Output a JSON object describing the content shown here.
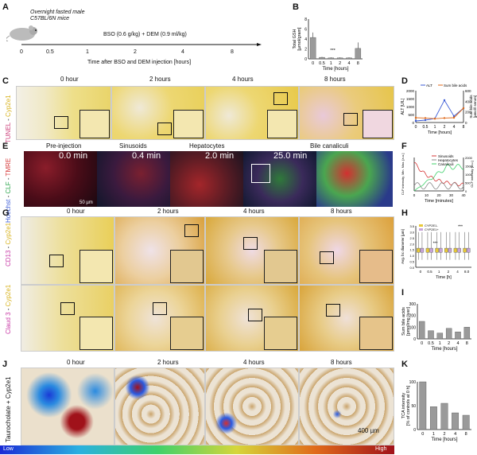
{
  "panels": {
    "A": {
      "letter": "A",
      "mouse_text_1": "Overnight fasted male",
      "mouse_text_2": "C57BL/6N mice",
      "treatment": "BSO (0.6 g/kg) + DEM (0.9 ml/kg)",
      "ticks": [
        "0",
        "0.5",
        "1",
        "2",
        "4",
        "8"
      ],
      "axis_label": "Time after BSO and DEM injection [hours]"
    },
    "B": {
      "letter": "B"
    },
    "C": {
      "letter": "C",
      "times": [
        "0 hour",
        "2 hours",
        "4 hours",
        "8 hours"
      ],
      "side_label_a": "TUNEL",
      "side_label_sep": " - ",
      "side_label_b": "Cyp2e1"
    },
    "D": {
      "letter": "D"
    },
    "E": {
      "letter": "E",
      "times": [
        "Pre-injection",
        "Sinusoids",
        "Hepatocytes",
        "Bile canaliculi"
      ],
      "minutes": [
        "0.0 min",
        "0.4 min",
        "2.0 min",
        "25.0 min"
      ],
      "side_label_a": "Hoechst",
      "side_label_b": "CLF",
      "side_label_c": "TMRE",
      "sep": " - ",
      "scale": "50 µm"
    },
    "F": {
      "letter": "F"
    },
    "G": {
      "letter": "G",
      "times": [
        "0 hour",
        "2 hours",
        "4 hours",
        "8 hours"
      ],
      "side_label_top_a": "CD13",
      "side_label_top_b": "Cyp2e1",
      "sep": " - ",
      "side_label_bot_a": "Claud 3",
      "side_label_bot_b": "Cyp2e1"
    },
    "H": {
      "letter": "H"
    },
    "I": {
      "letter": "I"
    },
    "J": {
      "letter": "J",
      "times": [
        "0 hour",
        "2 hours",
        "4 hours",
        "8 hours"
      ],
      "side_label": "Taurocholate + Cyp2e1",
      "scale": "400 µm",
      "low": "Low",
      "high": "High"
    },
    "K": {
      "letter": "K"
    }
  },
  "colors": {
    "cyp_yellow": "#e8c93a",
    "tunel_pink": "#cc3f7a",
    "fluor_red": "#d63a3a",
    "fluor_green": "#3fd16a",
    "fluor_blue": "#3b5bd6",
    "bar_grey": "#999999"
  },
  "chart_data": [
    {
      "id": "B",
      "type": "bar",
      "categories": [
        "0",
        "0.5",
        "1",
        "2",
        "4",
        "8"
      ],
      "values": [
        4.3,
        0.3,
        0.2,
        0.2,
        0.2,
        2.1
      ],
      "errors": [
        1.0,
        0.1,
        0.1,
        0.1,
        0.1,
        1.2
      ],
      "ylabel": "Total GSH\n[µmol/gram]",
      "xlabel": "Time [hours]",
      "ylim": [
        0,
        8
      ],
      "yticks": [
        "0",
        "2",
        "4",
        "6",
        "8"
      ],
      "annotation": "***"
    },
    {
      "id": "D",
      "type": "line",
      "x": [
        "0",
        "0.5",
        "1",
        "2",
        "4",
        "8"
      ],
      "series": [
        {
          "name": "ALT",
          "values": [
            100,
            150,
            250,
            1400,
            400,
            900
          ]
        },
        {
          "name": "Sum bile acids",
          "values": [
            300,
            280,
            240,
            280,
            300,
            900
          ]
        }
      ],
      "ylabel": "ALT [U/L]",
      "y2label": "Sum bile acids\n[µmol/l serum]",
      "xlabel": "Time [hours]",
      "ylim": [
        0,
        2000
      ],
      "yticks": [
        "0",
        "500",
        "1000",
        "1500",
        "2000"
      ],
      "y2ticks": [
        "0",
        "200",
        "400",
        "600"
      ]
    },
    {
      "id": "F",
      "type": "line",
      "x_range": [
        0,
        40
      ],
      "series": [
        {
          "name": "Sinusoids"
        },
        {
          "name": "Hepatocytes"
        },
        {
          "name": "Canaliculi"
        }
      ],
      "xlabel": "Time [minutes]",
      "ylabel": "CLF intensity, Min. Max. [a.u.]",
      "y2label": "CLF intensity [a.u.]",
      "xticks": [
        "0",
        "10",
        "20",
        "30",
        "40"
      ],
      "yticks": [
        "0",
        "500",
        "1000",
        "1500",
        "2000"
      ]
    },
    {
      "id": "H",
      "type": "box",
      "categories": [
        "0",
        "0.5",
        "1",
        "2",
        "4",
        "8.0"
      ],
      "series": [
        {
          "name": "CYP2E1-"
        },
        {
          "name": "CYP2E1+"
        }
      ],
      "xlabel": "Time [h]",
      "ylabel": "Avg. bc diameter [µm]",
      "yticks": [
        "0.0",
        "0.5",
        "1.0",
        "1.5",
        "2.0",
        "2.5",
        "3.0",
        "3.5"
      ],
      "annotation": "***"
    },
    {
      "id": "I",
      "type": "bar",
      "categories": [
        "0",
        "0.5",
        "1",
        "2",
        "4",
        "8"
      ],
      "values": [
        150,
        70,
        50,
        90,
        60,
        100
      ],
      "ylabel": "Sum bile acids\n[pmol/mg liver]",
      "xlabel": "Time [hours]",
      "yticks": [
        "0",
        "100",
        "200",
        "300"
      ],
      "ylim": [
        0,
        300
      ]
    },
    {
      "id": "K",
      "type": "bar",
      "categories": [
        "0",
        "1",
        "2",
        "4",
        "8"
      ],
      "values": [
        100,
        48,
        55,
        35,
        30
      ],
      "ylabel": "TCA intensity\n[% of controls at 0 h]",
      "xlabel": "Time [hours]",
      "yticks": [
        "0",
        "50",
        "100"
      ],
      "ylim": [
        0,
        100
      ]
    }
  ]
}
